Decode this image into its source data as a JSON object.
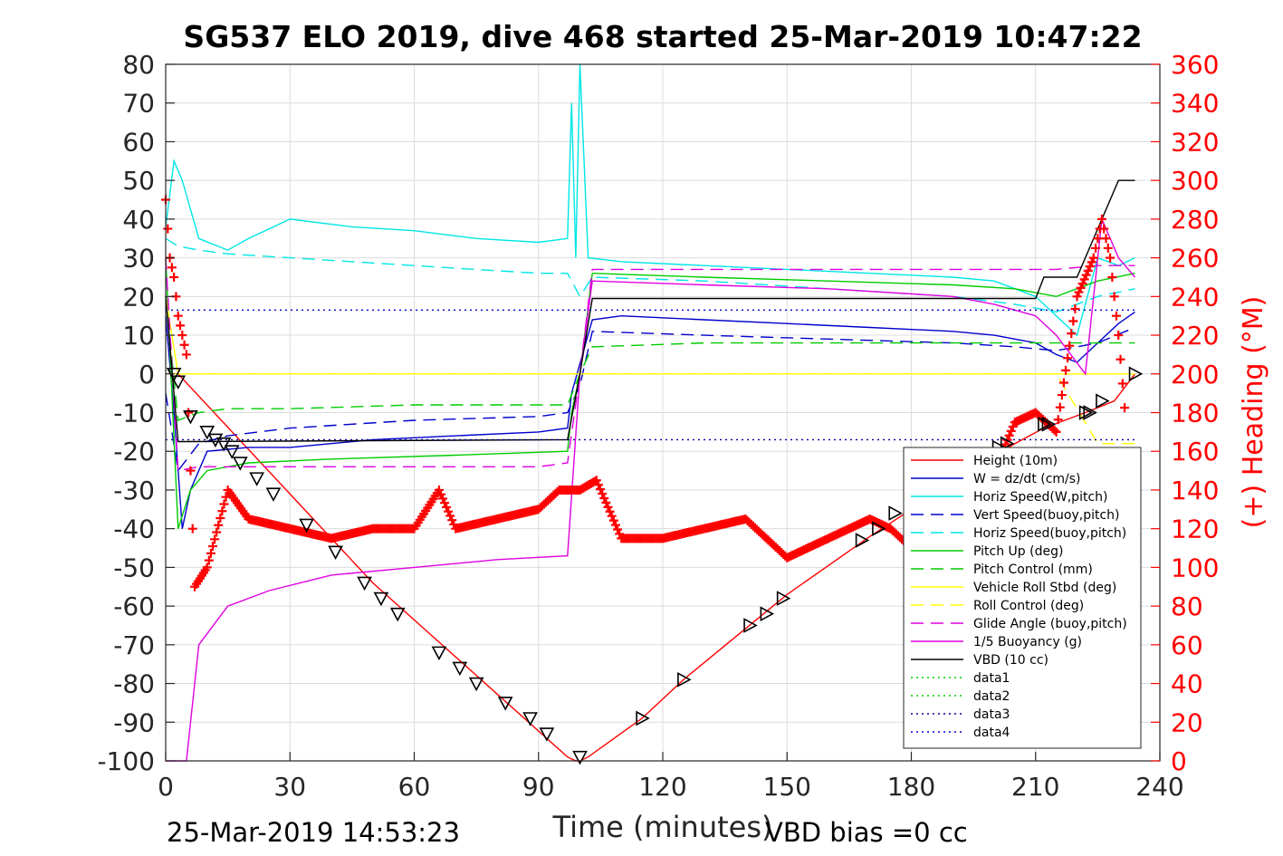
{
  "chart_data": {
    "type": "line",
    "title": "SG537 ELO 2019, dive 468 started 25-Mar-2019 10:47:22",
    "xlabel": "Time (minutes)",
    "ylabel": "",
    "y2label": "(+) Heading (°M)",
    "xlim": [
      0,
      240
    ],
    "ylim": [
      -100,
      80
    ],
    "y2lim": [
      0,
      360
    ],
    "xticks": [
      "0",
      "30",
      "60",
      "90",
      "120",
      "150",
      "180",
      "210",
      "240"
    ],
    "yticks": [
      "80",
      "70",
      "60",
      "50",
      "40",
      "30",
      "20",
      "10",
      "0",
      "-10",
      "-20",
      "-30",
      "-40",
      "-50",
      "-60",
      "-70",
      "-80",
      "-90",
      "-100"
    ],
    "y2ticks": [
      "360",
      "340",
      "320",
      "300",
      "280",
      "260",
      "240",
      "220",
      "200",
      "180",
      "160",
      "140",
      "120",
      "100",
      "80",
      "60",
      "40",
      "20",
      "0"
    ],
    "grid": true,
    "legend_position": "bottom-right",
    "footer_left": "25-Mar-2019 14:53:23",
    "footer_right": "VBD bias =0 cc",
    "colors": {
      "height": "#ff0000",
      "w": "#0000cc",
      "horiz_w": "#00e5e5",
      "vert_buoy": "#0000cc",
      "horiz_buoy": "#00e5e5",
      "pitch": "#00cc00",
      "pitch_ctrl": "#00cc00",
      "roll": "#ffff00",
      "roll_ctrl": "#ffff00",
      "glide": "#e000e0",
      "buoy": "#e000e0",
      "vbd": "#000000",
      "heading": "#ff0000",
      "data1": "#00cc00",
      "data2": "#00cc00",
      "data3": "#000099",
      "data4": "#0000cc"
    },
    "series": [
      {
        "name": "Height (10m)",
        "style": "solid",
        "x": [
          0,
          3,
          50,
          97,
          99,
          100,
          102,
          115,
          125,
          150,
          170,
          190,
          205,
          212,
          222,
          229,
          234
        ],
        "y": [
          0,
          0,
          -54,
          -99,
          -100,
          -100,
          -99,
          -89,
          -79,
          -57,
          -42,
          -28,
          -18,
          -14,
          -10,
          -7,
          0
        ]
      },
      {
        "name": "W = dz/dt (cm/s)",
        "style": "solid",
        "x": [
          0,
          2,
          4,
          6,
          10,
          20,
          30,
          50,
          70,
          90,
          97,
          98,
          103,
          110,
          130,
          150,
          170,
          190,
          200,
          210,
          215,
          220,
          225,
          230,
          234
        ],
        "y": [
          15,
          -10,
          -40,
          -30,
          -20,
          -19,
          -19,
          -17,
          -16,
          -15,
          -14,
          -5,
          14,
          15,
          14,
          13,
          12,
          11,
          10,
          8,
          5,
          3,
          8,
          13,
          16
        ]
      },
      {
        "name": "Horiz Speed(W,pitch)",
        "style": "solid",
        "x": [
          0,
          2,
          4,
          8,
          15,
          20,
          30,
          45,
          60,
          75,
          90,
          97,
          98,
          99,
          100,
          102,
          110,
          130,
          150,
          170,
          190,
          200,
          210,
          215,
          220,
          225,
          230,
          234
        ],
        "y": [
          38,
          55,
          50,
          35,
          32,
          35,
          40,
          38,
          37,
          35,
          34,
          35,
          70,
          30,
          90,
          30,
          29,
          28,
          27,
          26,
          25,
          24,
          20,
          15,
          10,
          30,
          28,
          30
        ]
      },
      {
        "name": "Vert Speed(buoy,pitch)",
        "style": "dashed",
        "x": [
          0,
          3,
          8,
          15,
          30,
          60,
          90,
          97,
          100,
          103,
          130,
          160,
          190,
          205,
          215,
          225,
          234
        ],
        "y": [
          -5,
          -25,
          -18,
          -16,
          -14,
          -12,
          -11,
          -10,
          -3,
          11,
          10,
          9,
          8,
          7,
          6,
          8,
          12
        ]
      },
      {
        "name": "Horiz Speed(buoy,pitch)",
        "style": "dashed",
        "x": [
          0,
          3,
          8,
          15,
          30,
          60,
          90,
          97,
          100,
          103,
          130,
          160,
          190,
          205,
          215,
          225,
          234
        ],
        "y": [
          35,
          33,
          32,
          31,
          30,
          28,
          26,
          26,
          20,
          25,
          24,
          22,
          20,
          18,
          16,
          20,
          22
        ]
      },
      {
        "name": "Pitch Up (deg)",
        "style": "solid",
        "x": [
          0,
          3,
          6,
          10,
          20,
          40,
          70,
          97,
          98,
          100,
          103,
          130,
          160,
          190,
          205,
          215,
          225,
          234
        ],
        "y": [
          30,
          -40,
          -30,
          -25,
          -23,
          -22,
          -21,
          -20,
          -10,
          0,
          26,
          25,
          24,
          23,
          22,
          20,
          24,
          26
        ]
      },
      {
        "name": "Pitch Control (mm)",
        "style": "dashed",
        "x": [
          0,
          3,
          8,
          15,
          30,
          60,
          90,
          97,
          100,
          103,
          130,
          160,
          190,
          205,
          215,
          225,
          234
        ],
        "y": [
          20,
          -12,
          -10,
          -9,
          -9,
          -8,
          -8,
          -8,
          0,
          7,
          8,
          8,
          8,
          8,
          8,
          8,
          8
        ]
      },
      {
        "name": "Vehicle Roll Stbd (deg)",
        "style": "solid",
        "x": [
          0,
          3,
          10,
          30,
          60,
          90,
          97,
          100,
          130,
          160,
          190,
          205,
          215,
          225,
          234
        ],
        "y": [
          20,
          0,
          0,
          0,
          0,
          0,
          0,
          0,
          0,
          0,
          0,
          0,
          0,
          0,
          0
        ]
      },
      {
        "name": "Roll Control (deg)",
        "style": "dashed",
        "x": [
          0,
          5,
          30,
          60,
          90,
          97,
          103,
          130,
          160,
          190,
          205,
          215,
          225,
          234
        ],
        "y": [
          0,
          0,
          0,
          0,
          0,
          0,
          0,
          0,
          0,
          0,
          0,
          0,
          -18,
          -18
        ]
      },
      {
        "name": "Glide Angle (buoy,pitch)",
        "style": "dashed",
        "x": [
          0,
          3,
          8,
          15,
          30,
          60,
          90,
          97,
          100,
          103,
          130,
          160,
          190,
          205,
          215,
          225,
          234
        ],
        "y": [
          30,
          -25,
          -24,
          -24,
          -24,
          -24,
          -24,
          -23,
          0,
          27,
          27,
          27,
          27,
          27,
          27,
          28,
          28
        ]
      },
      {
        "name": "1/5 Buoyancy (g)",
        "style": "solid",
        "x": [
          0,
          3,
          5,
          8,
          15,
          25,
          40,
          60,
          80,
          97,
          100,
          103,
          130,
          160,
          190,
          200,
          210,
          215,
          222,
          226,
          230,
          234
        ],
        "y": [
          -100,
          -100,
          -100,
          -70,
          -60,
          -56,
          -52,
          -50,
          -48,
          -47,
          0,
          24,
          23,
          22,
          20,
          18,
          15,
          10,
          0,
          40,
          30,
          25
        ]
      },
      {
        "name": "VBD (10 cc)",
        "style": "solid",
        "x": [
          0,
          3,
          5,
          97,
          100,
          103,
          210,
          212,
          220,
          230,
          234
        ],
        "y": [
          20,
          -17.5,
          -17.5,
          -17,
          0,
          19.5,
          19.5,
          25,
          25,
          50,
          50
        ]
      },
      {
        "name": "data1",
        "style": "dotted",
        "x": [],
        "y": []
      },
      {
        "name": "data2",
        "style": "dotted",
        "x": [],
        "y": []
      },
      {
        "name": "data3",
        "style": "dotted",
        "x": [
          0,
          234
        ],
        "y": [
          -17,
          -17
        ]
      },
      {
        "name": "data4",
        "style": "dotted",
        "x": [
          0,
          234
        ],
        "y": [
          16.5,
          16.5
        ]
      }
    ],
    "heading": {
      "axis": "right",
      "x": [
        0,
        1,
        2,
        3,
        5,
        7,
        10,
        15,
        20,
        30,
        40,
        50,
        60,
        66,
        70,
        80,
        90,
        95,
        100,
        104,
        110,
        120,
        130,
        140,
        150,
        160,
        170,
        175,
        180,
        190,
        200,
        205,
        210,
        215,
        220,
        224,
        226,
        228,
        230,
        232
      ],
      "y": [
        290,
        260,
        250,
        230,
        210,
        90,
        100,
        140,
        125,
        120,
        115,
        120,
        120,
        140,
        120,
        125,
        130,
        140,
        140,
        145,
        115,
        115,
        120,
        125,
        105,
        115,
        125,
        120,
        110,
        130,
        150,
        175,
        180,
        170,
        240,
        260,
        280,
        260,
        220,
        170
      ]
    },
    "markers": {
      "x": [
        2,
        3,
        6,
        10,
        12,
        14,
        16,
        18,
        22,
        26,
        34,
        41,
        48,
        52,
        56,
        66,
        71,
        75,
        82,
        88,
        92,
        100,
        115,
        125,
        141,
        145,
        149,
        168,
        172,
        176,
        201,
        203,
        212,
        213,
        222,
        223,
        226,
        234
      ],
      "y": [
        0,
        -2,
        -11,
        -15,
        -17,
        -18,
        -20,
        -23,
        -27,
        -31,
        -39,
        -46,
        -54,
        -58,
        -62,
        -72,
        -76,
        -80,
        -85,
        -89,
        -93,
        -99,
        -89,
        -79,
        -65,
        -62,
        -58,
        -43,
        -40,
        -36,
        -19,
        -18,
        -13,
        -13,
        -10,
        -10,
        -7,
        0
      ]
    }
  }
}
